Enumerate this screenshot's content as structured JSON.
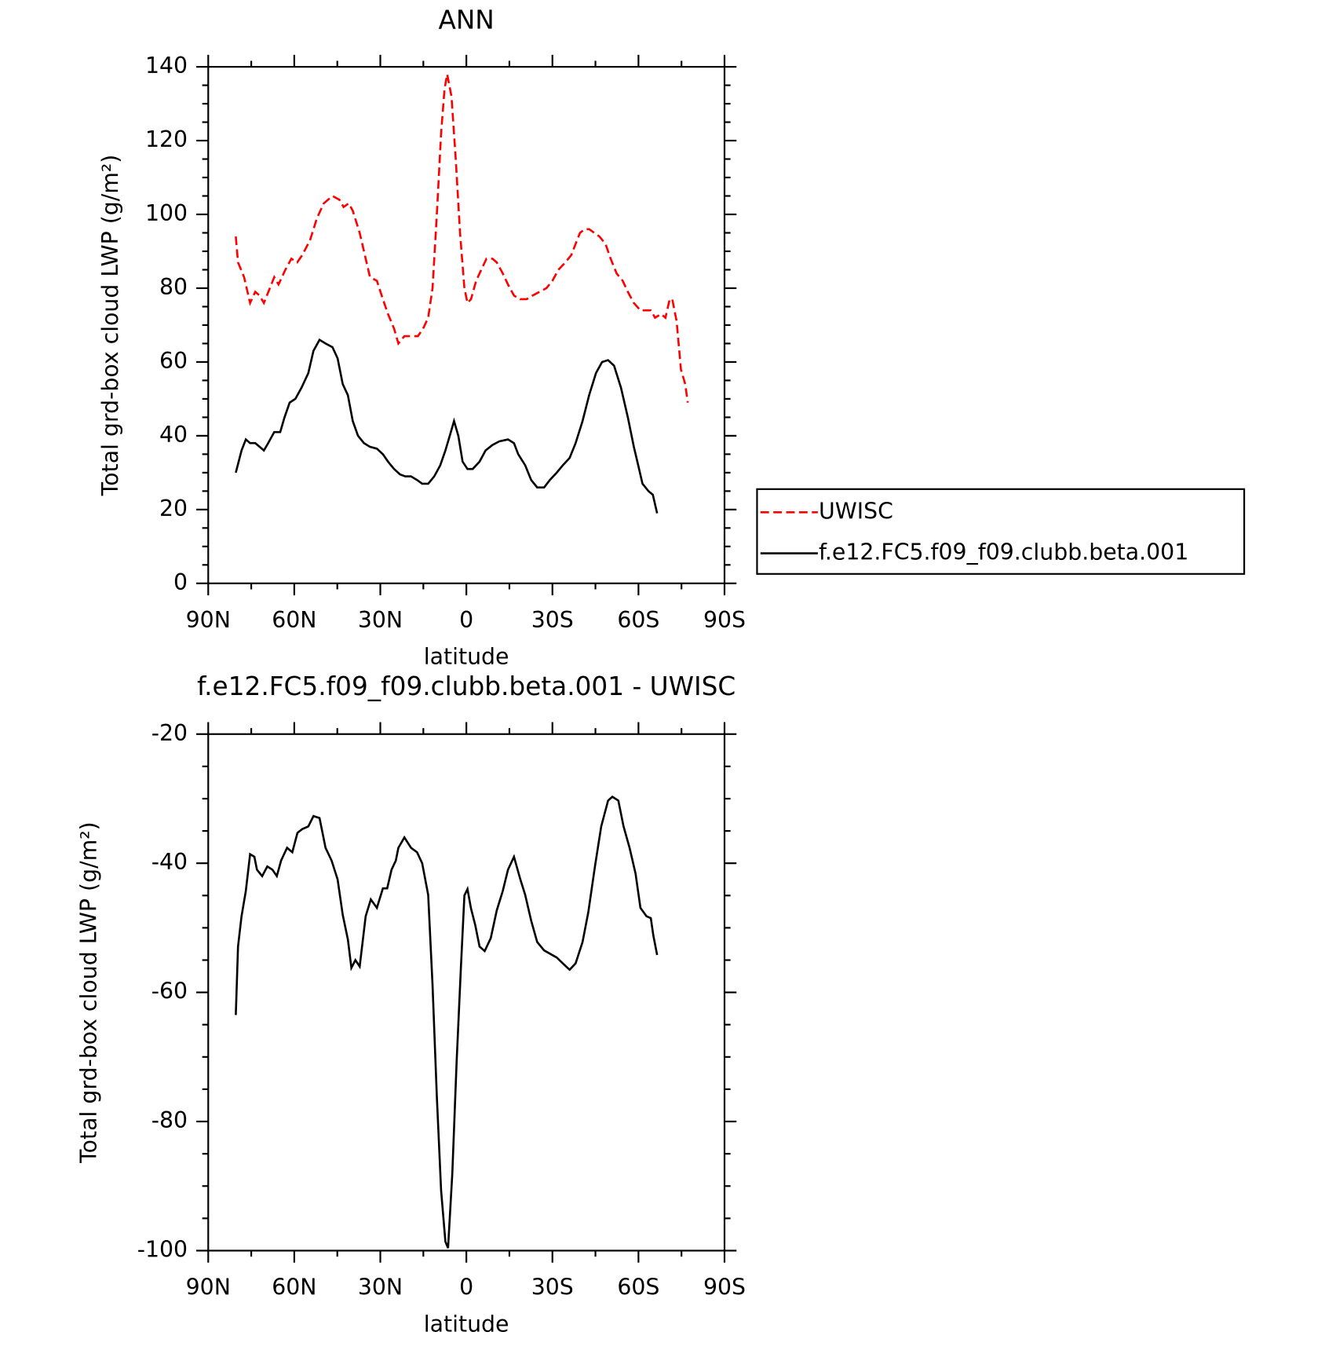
{
  "chart_data": [
    {
      "type": "line",
      "title": "ANN",
      "xlabel": "latitude",
      "ylabel": "Total grd-box cloud LWP (g/m²)",
      "xlim": [
        90,
        -90
      ],
      "ylim": [
        0,
        140
      ],
      "xticks": [
        {
          "value": 90,
          "label": "90N"
        },
        {
          "value": 60,
          "label": "60N"
        },
        {
          "value": 30,
          "label": "30N"
        },
        0,
        {
          "value": -30,
          "label": "30S"
        },
        {
          "value": -60,
          "label": "60S"
        },
        {
          "value": -90,
          "label": "90S"
        }
      ],
      "yticks": [
        0,
        20,
        40,
        60,
        80,
        100,
        120,
        140
      ],
      "legend": "right",
      "series": [
        {
          "name": "UWISC",
          "color": "#ff0000",
          "dash": true,
          "x": [
            80.4,
            79.6,
            77.5,
            75.4,
            73.6,
            72.1,
            70.6,
            68.5,
            67.0,
            65.5,
            63.1,
            61.0,
            59.0,
            57.2,
            54.5,
            52.1,
            49.7,
            46.7,
            44.3,
            42.8,
            41.0,
            39.6,
            37.2,
            35.1,
            33.6,
            31.2,
            29.1,
            27.3,
            25.2,
            23.7,
            21.6,
            19.3,
            16.9,
            15.1,
            13.3,
            11.8,
            10.3,
            8.8,
            7.6,
            6.7,
            5.2,
            3.7,
            2.2,
            0.7,
            -0.4,
            -1.6,
            -3.4,
            -5.2,
            -7.0,
            -9.1,
            -10.6,
            -12.7,
            -14.5,
            -16.6,
            -18.7,
            -21.0,
            -23.1,
            -25.5,
            -27.9,
            -30.0,
            -32.1,
            -34.5,
            -36.6,
            -38.1,
            -39.6,
            -41.3,
            -42.8,
            -44.6,
            -46.4,
            -48.5,
            -50.3,
            -52.4,
            -54.5,
            -56.3,
            -58.4,
            -60.7,
            -62.8,
            -64.3,
            -65.8,
            -67.9,
            -69.4,
            -70.9,
            -71.8,
            -73.3,
            -74.8,
            -76.3,
            -77.2
          ],
          "values": [
            94,
            87,
            83,
            76,
            79,
            78,
            76,
            80,
            83,
            81,
            85,
            88,
            87,
            89,
            93,
            99,
            103,
            105,
            104,
            102,
            103,
            101,
            95,
            88,
            83,
            82,
            77,
            73,
            69,
            65,
            67,
            67,
            67,
            69,
            72,
            80,
            100,
            122,
            134,
            138,
            132,
            115,
            95,
            80,
            76,
            77,
            82,
            85,
            88,
            88,
            87,
            84,
            81,
            78,
            77,
            77,
            78,
            79,
            80,
            82,
            85,
            87,
            89,
            92,
            95,
            96,
            96,
            95,
            94,
            92,
            88,
            84,
            82,
            79,
            76,
            74,
            74,
            74,
            72,
            73,
            72,
            77,
            77,
            71,
            58,
            54,
            49
          ]
        },
        {
          "name": "f.e12.FC5.f09_f09.clubb.beta.001",
          "color": "#000000",
          "dash": false,
          "x": [
            80.4,
            78.4,
            76.9,
            75.4,
            73.6,
            72.1,
            70.6,
            69.1,
            67.0,
            64.9,
            63.4,
            61.6,
            59.6,
            57.5,
            55.1,
            53.3,
            51.2,
            49.1,
            46.7,
            44.9,
            43.1,
            41.3,
            39.6,
            37.8,
            35.7,
            33.6,
            31.2,
            29.1,
            27.3,
            25.2,
            23.1,
            21.3,
            19.3,
            17.2,
            15.4,
            13.3,
            11.2,
            9.1,
            7.3,
            5.8,
            4.3,
            2.8,
            1.3,
            -0.4,
            -2.2,
            -4.6,
            -6.7,
            -9.1,
            -11.5,
            -14.5,
            -16.6,
            -18.1,
            -20.5,
            -22.6,
            -24.7,
            -27.1,
            -29.1,
            -31.5,
            -33.6,
            -36.0,
            -38.1,
            -40.5,
            -42.8,
            -45.2,
            -47.3,
            -49.4,
            -51.5,
            -53.9,
            -56.3,
            -58.4,
            -59.9,
            -61.4,
            -63.5,
            -65.0,
            -66.5
          ],
          "values": [
            30,
            36,
            39,
            38,
            38,
            37,
            36,
            38,
            41,
            41,
            45,
            49,
            50,
            53,
            57,
            63,
            66,
            65,
            64,
            61,
            54,
            51,
            44,
            40,
            38,
            37,
            36.5,
            35,
            33,
            31,
            29.5,
            29,
            29,
            28,
            27,
            27,
            29,
            32,
            36,
            40,
            44,
            40,
            33,
            31,
            31,
            33,
            36,
            37.5,
            38.5,
            39,
            38,
            35,
            32,
            28,
            26,
            26,
            28,
            30,
            32,
            34,
            38,
            44,
            51,
            57,
            60,
            60.5,
            59,
            53,
            45,
            37,
            32,
            27,
            25,
            24,
            19
          ]
        }
      ]
    },
    {
      "type": "line",
      "title": "f.e12.FC5.f09_f09.clubb.beta.001 - UWISC",
      "xlabel": "latitude",
      "ylabel": "Total grd-box cloud LWP (g/m²)",
      "xlim": [
        90,
        -90
      ],
      "ylim": [
        -100,
        -20
      ],
      "xticks": [
        {
          "value": 90,
          "label": "90N"
        },
        {
          "value": 60,
          "label": "60N"
        },
        {
          "value": 30,
          "label": "30N"
        },
        0,
        {
          "value": -30,
          "label": "30S"
        },
        {
          "value": -60,
          "label": "60S"
        },
        {
          "value": -90,
          "label": "90S"
        }
      ],
      "yticks": [
        -100,
        -80,
        -60,
        -40,
        -20
      ],
      "series": [
        {
          "color": "#000000",
          "dash": false,
          "x": [
            80.4,
            79.6,
            78.4,
            76.9,
            75.4,
            73.9,
            73.0,
            71.2,
            69.4,
            67.6,
            66.1,
            64.6,
            62.5,
            60.7,
            58.9,
            57.2,
            55.1,
            53.3,
            51.2,
            49.1,
            47.0,
            44.9,
            43.1,
            41.3,
            40.1,
            38.7,
            37.2,
            35.1,
            33.3,
            31.2,
            29.1,
            27.6,
            26.1,
            24.6,
            23.7,
            21.6,
            19.3,
            17.2,
            15.4,
            13.3,
            11.8,
            10.3,
            8.8,
            7.3,
            6.4,
            4.9,
            3.4,
            1.9,
            0.7,
            -0.4,
            -1.6,
            -3.1,
            -4.6,
            -6.4,
            -8.5,
            -10.6,
            -12.7,
            -14.5,
            -16.6,
            -18.7,
            -20.5,
            -22.6,
            -24.7,
            -27.1,
            -29.1,
            -31.5,
            -33.6,
            -36.0,
            -38.1,
            -40.5,
            -42.5,
            -44.9,
            -47.0,
            -49.4,
            -50.9,
            -53.0,
            -54.8,
            -56.9,
            -59.0,
            -60.7,
            -62.8,
            -64.3,
            -65.2,
            -66.5
          ],
          "values": [
            -63.5,
            -52.9,
            -48.2,
            -44.3,
            -38.6,
            -39,
            -41,
            -42,
            -40.5,
            -41,
            -42,
            -39.6,
            -37.6,
            -38.3,
            -35.3,
            -34.7,
            -34.3,
            -32.7,
            -33,
            -37.6,
            -39.6,
            -42.5,
            -48,
            -51.8,
            -56.2,
            -55,
            -56,
            -48.2,
            -45.6,
            -46.9,
            -43.9,
            -43.9,
            -41,
            -39.6,
            -37.6,
            -36,
            -37.6,
            -38.3,
            -40,
            -44.9,
            -58.9,
            -76.1,
            -90.7,
            -98.6,
            -99.6,
            -88,
            -70.8,
            -56.2,
            -45,
            -44,
            -47,
            -49.6,
            -52.9,
            -53.6,
            -51.6,
            -47.3,
            -44.3,
            -41,
            -39,
            -42.3,
            -44.9,
            -48.9,
            -52.2,
            -53.5,
            -54,
            -54.6,
            -55.5,
            -56.5,
            -55.5,
            -52.2,
            -47.6,
            -40.3,
            -34.3,
            -30.3,
            -29.7,
            -30.3,
            -34.3,
            -37.6,
            -41.6,
            -46.9,
            -48.2,
            -48.5,
            -51.2,
            -54.2
          ]
        }
      ]
    }
  ]
}
